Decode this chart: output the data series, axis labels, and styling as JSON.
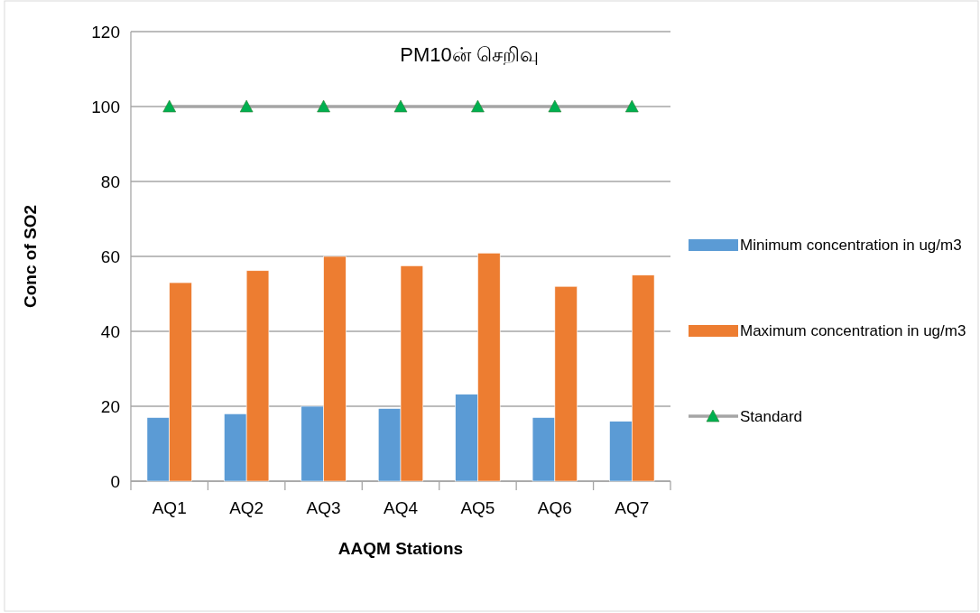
{
  "chart_data": {
    "type": "bar",
    "title": "PM10ன் செறிவு",
    "xlabel": "AAQM Stations",
    "ylabel": "Conc of SO2",
    "categories": [
      "AQ1",
      "AQ2",
      "AQ3",
      "AQ4",
      "AQ5",
      "AQ6",
      "AQ7"
    ],
    "series": [
      {
        "name": "Minimum concentration in ug/m3",
        "color": "#5b9bd5",
        "values": [
          17,
          18,
          20,
          19.4,
          23.2,
          17,
          16
        ]
      },
      {
        "name": "Maximum concentration in ug/m3",
        "color": "#ed7d31",
        "values": [
          53,
          56.2,
          60,
          57.5,
          60.9,
          52,
          55
        ]
      },
      {
        "name": "Standard",
        "type": "line",
        "color": "#a5a5a5",
        "colors": [
          "#00b050",
          "#00b050",
          "#00b050",
          "#00b050",
          "#00b050",
          "#00b050",
          "#00b050"
        ],
        "values": [
          100,
          100,
          100,
          100,
          100,
          100,
          100
        ]
      }
    ],
    "ylim": [
      0,
      120
    ],
    "yticks": [
      0,
      20,
      40,
      60,
      80,
      100,
      120
    ],
    "grid": "y",
    "legend": "right",
    "marker": "triangle"
  }
}
